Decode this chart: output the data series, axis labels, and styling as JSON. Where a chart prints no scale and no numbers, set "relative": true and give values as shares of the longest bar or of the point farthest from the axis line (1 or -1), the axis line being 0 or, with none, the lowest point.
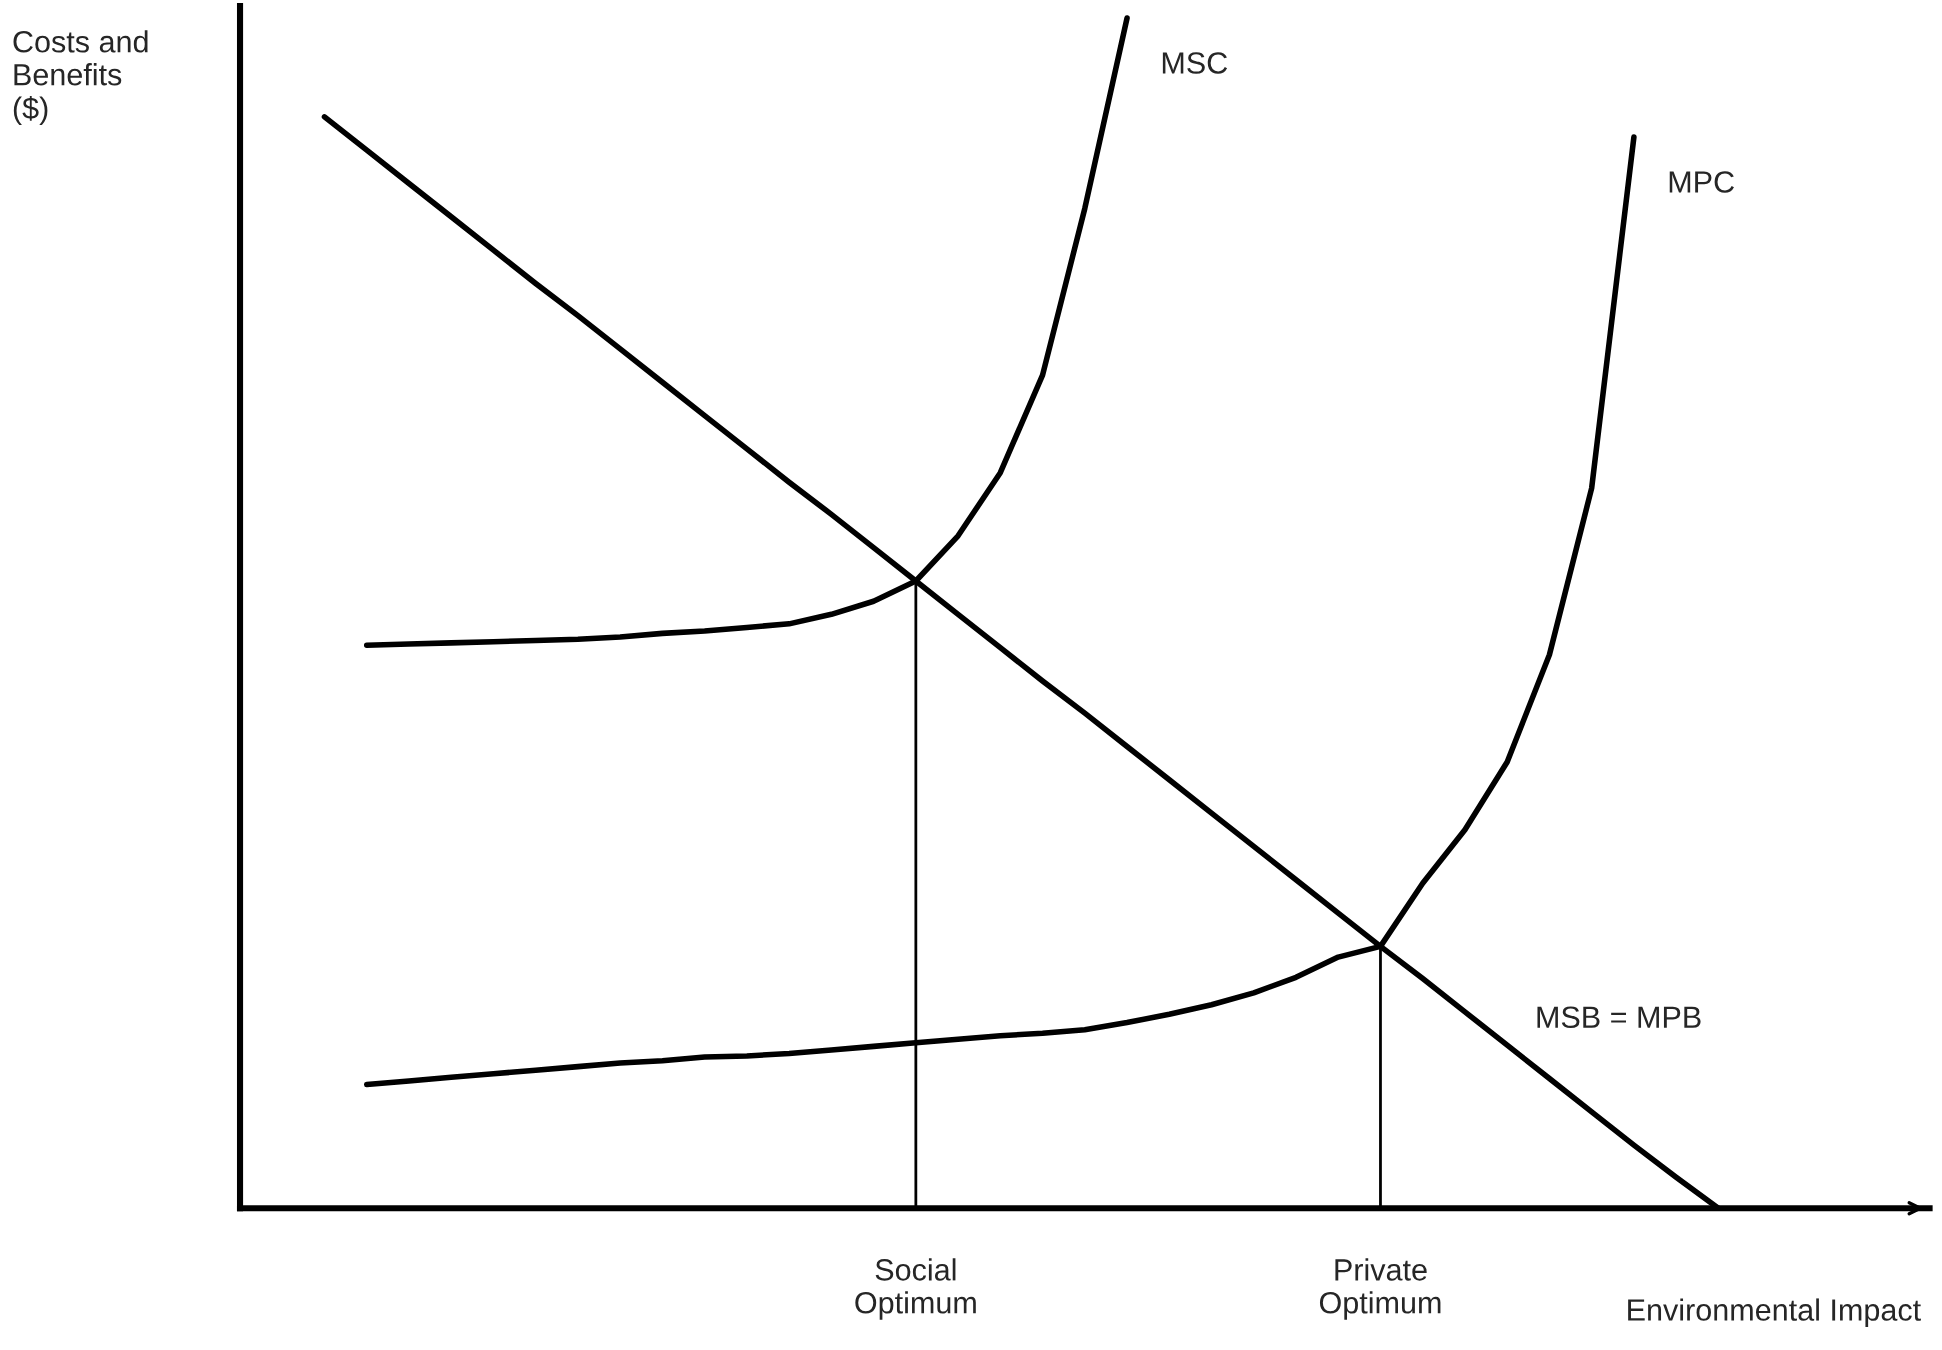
{
  "chart_data": {
    "type": "line",
    "relative": true,
    "xlabel": "Environmental Impact",
    "ylabel": "Costs and\nBenefits\n($)",
    "categories": [
      null,
      null,
      null,
      null,
      null,
      null,
      null,
      null,
      null,
      null,
      null,
      null,
      null,
      null,
      null,
      null,
      "Social\nOptimum",
      null,
      null,
      null,
      null,
      null,
      null,
      null,
      null,
      null,
      null,
      "Private\nOptimum",
      null,
      null,
      null,
      null,
      null,
      null,
      null,
      null,
      null,
      null,
      null,
      null,
      null
    ],
    "grid": false,
    "legend": false,
    "marker": "none",
    "line_style": "solid",
    "tick_labels": "x",
    "ref_lines": [
      {
        "axis": "x",
        "value": "Social\nOptimum",
        "color": "#000000"
      },
      {
        "axis": "x",
        "value": "Private\nOptimum",
        "color": "#000000"
      }
    ],
    "series": [
      {
        "name": "MSC",
        "color": "#000000",
        "values": [
          null,
          null,
          null,
          0.473,
          0.474,
          0.475,
          0.476,
          0.477,
          0.478,
          0.48,
          0.483,
          0.485,
          0.488,
          0.491,
          0.499,
          0.51,
          0.527,
          0.565,
          0.618,
          0.7,
          0.84,
          1.0,
          null,
          null,
          null,
          null,
          null,
          null,
          null,
          null,
          null,
          null,
          null,
          null,
          null,
          null,
          null,
          null,
          null,
          null,
          null
        ]
      },
      {
        "name": "MPC",
        "color": "#000000",
        "values": [
          null,
          null,
          null,
          0.104,
          0.107,
          0.11,
          0.113,
          0.116,
          0.119,
          0.122,
          0.124,
          0.127,
          0.128,
          0.13,
          0.133,
          0.136,
          0.139,
          0.142,
          0.145,
          0.147,
          0.15,
          0.156,
          0.163,
          0.171,
          0.181,
          0.194,
          0.211,
          0.22,
          0.273,
          0.318,
          0.375,
          0.465,
          0.605,
          0.9,
          null,
          null,
          null,
          null,
          null,
          null,
          null
        ]
      },
      {
        "name": "MSB = MPB",
        "color": "#000000",
        "values": [
          null,
          null,
          0.917,
          0.889,
          0.861,
          0.833,
          0.805,
          0.777,
          0.75,
          0.722,
          0.694,
          0.666,
          0.638,
          0.61,
          0.583,
          0.555,
          0.527,
          0.499,
          0.471,
          0.443,
          0.416,
          0.388,
          0.36,
          0.332,
          0.304,
          0.276,
          0.248,
          0.22,
          0.193,
          0.165,
          0.137,
          0.109,
          0.081,
          0.053,
          0.026,
          0.0,
          null,
          null,
          null,
          null,
          null
        ]
      }
    ]
  }
}
